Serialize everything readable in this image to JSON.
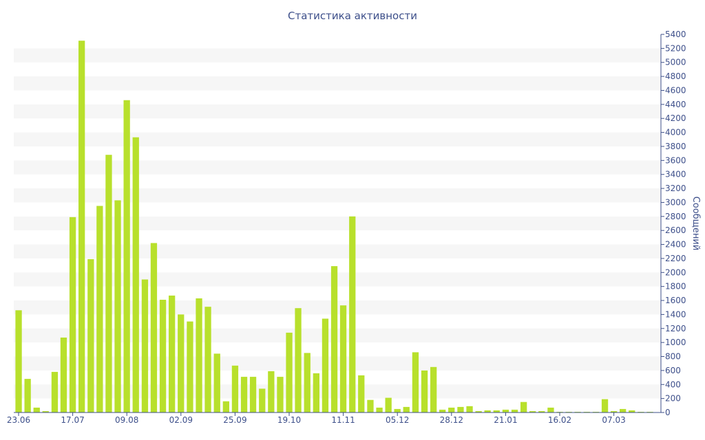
{
  "chart_data": {
    "type": "bar",
    "title": "Статистика активности",
    "xlabel": "",
    "ylabel": "Сообщений",
    "ylim": [
      0,
      5400
    ],
    "y_ticks": [
      0,
      200,
      400,
      600,
      800,
      1000,
      1200,
      1400,
      1600,
      1800,
      2000,
      2200,
      2400,
      2600,
      2800,
      3000,
      3200,
      3400,
      3600,
      3800,
      4000,
      4200,
      4400,
      4600,
      4800,
      5000,
      5200,
      5400
    ],
    "y_axis_side": "right",
    "grid": "alternating horizontal bands",
    "bar_color": "#b8e02c",
    "band_color": "#f6f6f6",
    "text_color": "#3d4f8a",
    "x_tick_labels": [
      {
        "label": "23.06",
        "index": 0
      },
      {
        "label": "17.07",
        "index": 6
      },
      {
        "label": "09.08",
        "index": 12
      },
      {
        "label": "02.09",
        "index": 18
      },
      {
        "label": "25.09",
        "index": 24
      },
      {
        "label": "19.10",
        "index": 30
      },
      {
        "label": "11.11",
        "index": 36
      },
      {
        "label": "05.12",
        "index": 42
      },
      {
        "label": "28.12",
        "index": 48
      },
      {
        "label": "21.01",
        "index": 54
      },
      {
        "label": "16.02",
        "index": 60
      },
      {
        "label": "07.03",
        "index": 66
      }
    ],
    "values": [
      1460,
      480,
      70,
      20,
      580,
      1070,
      2790,
      5310,
      2190,
      2950,
      3680,
      3030,
      4460,
      3930,
      1900,
      2420,
      1610,
      1670,
      1400,
      1300,
      1630,
      1510,
      840,
      160,
      670,
      510,
      510,
      340,
      590,
      510,
      1140,
      1490,
      850,
      560,
      1340,
      2090,
      1530,
      2800,
      530,
      180,
      70,
      210,
      50,
      80,
      860,
      600,
      650,
      40,
      70,
      80,
      90,
      20,
      30,
      30,
      40,
      40,
      150,
      20,
      20,
      70,
      10,
      10,
      10,
      10,
      10,
      190,
      20,
      50,
      30,
      10,
      10
    ]
  }
}
